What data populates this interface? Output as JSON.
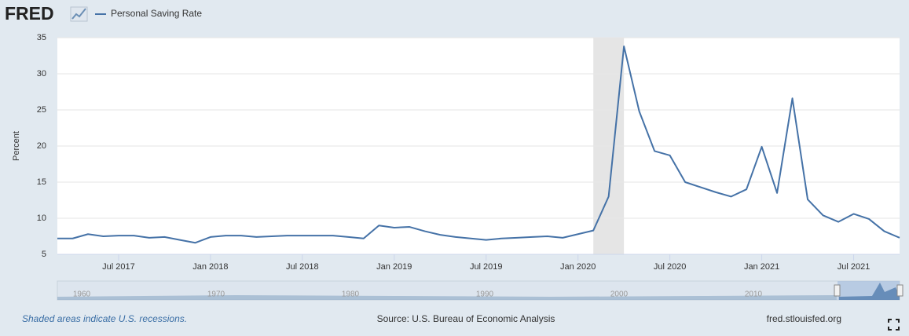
{
  "logo": "FRED",
  "chart_data": {
    "type": "line",
    "y_label": "Percent",
    "x": [
      "2017-03",
      "2017-04",
      "2017-05",
      "2017-06",
      "2017-07",
      "2017-08",
      "2017-09",
      "2017-10",
      "2017-11",
      "2017-12",
      "2018-01",
      "2018-02",
      "2018-03",
      "2018-04",
      "2018-05",
      "2018-06",
      "2018-07",
      "2018-08",
      "2018-09",
      "2018-10",
      "2018-11",
      "2018-12",
      "2019-01",
      "2019-02",
      "2019-03",
      "2019-04",
      "2019-05",
      "2019-06",
      "2019-07",
      "2019-08",
      "2019-09",
      "2019-10",
      "2019-11",
      "2019-12",
      "2020-01",
      "2020-02",
      "2020-03",
      "2020-04",
      "2020-05",
      "2020-06",
      "2020-07",
      "2020-08",
      "2020-09",
      "2020-10",
      "2020-11",
      "2020-12",
      "2021-01",
      "2021-02",
      "2021-03",
      "2021-04",
      "2021-05",
      "2021-06",
      "2021-07",
      "2021-08",
      "2021-09",
      "2021-10"
    ],
    "series": [
      {
        "name": "Personal Saving Rate",
        "color": "#4572a7",
        "values": [
          7.2,
          7.2,
          7.8,
          7.5,
          7.6,
          7.6,
          7.3,
          7.4,
          7.0,
          6.6,
          7.4,
          7.6,
          7.6,
          7.4,
          7.5,
          7.6,
          7.6,
          7.6,
          7.6,
          7.4,
          7.2,
          9.0,
          8.7,
          8.8,
          8.2,
          7.7,
          7.4,
          7.2,
          7.0,
          7.2,
          7.3,
          7.4,
          7.5,
          7.3,
          7.8,
          8.3,
          13.0,
          33.8,
          24.8,
          19.3,
          18.7,
          15.0,
          14.3,
          13.6,
          13.0,
          14.0,
          19.9,
          13.5,
          26.6,
          12.6,
          10.4,
          9.5,
          10.6,
          9.9,
          8.2,
          7.3
        ]
      }
    ],
    "xlim": [
      "2017-03",
      "2021-10"
    ],
    "xticks": [
      {
        "value": "2017-07",
        "label": "Jul 2017"
      },
      {
        "value": "2018-01",
        "label": "Jan 2018"
      },
      {
        "value": "2018-07",
        "label": "Jul 2018"
      },
      {
        "value": "2019-01",
        "label": "Jan 2019"
      },
      {
        "value": "2019-07",
        "label": "Jul 2019"
      },
      {
        "value": "2020-01",
        "label": "Jan 2020"
      },
      {
        "value": "2020-07",
        "label": "Jul 2020"
      },
      {
        "value": "2021-01",
        "label": "Jan 2021"
      },
      {
        "value": "2021-07",
        "label": "Jul 2021"
      }
    ],
    "ylim": [
      5,
      35
    ],
    "yticks": [
      5,
      10,
      15,
      20,
      25,
      30,
      35
    ],
    "grid": true,
    "recessions": [
      {
        "start": "2020-02",
        "end": "2020-04"
      }
    ]
  },
  "navigator": {
    "labels": [
      "1960",
      "1970",
      "1980",
      "1990",
      "2000",
      "2010"
    ]
  },
  "footer": {
    "note": "Shaded areas indicate U.S. recessions.",
    "source": "Source: U.S. Bureau of Economic Analysis",
    "site": "fred.stlouisfed.org"
  }
}
